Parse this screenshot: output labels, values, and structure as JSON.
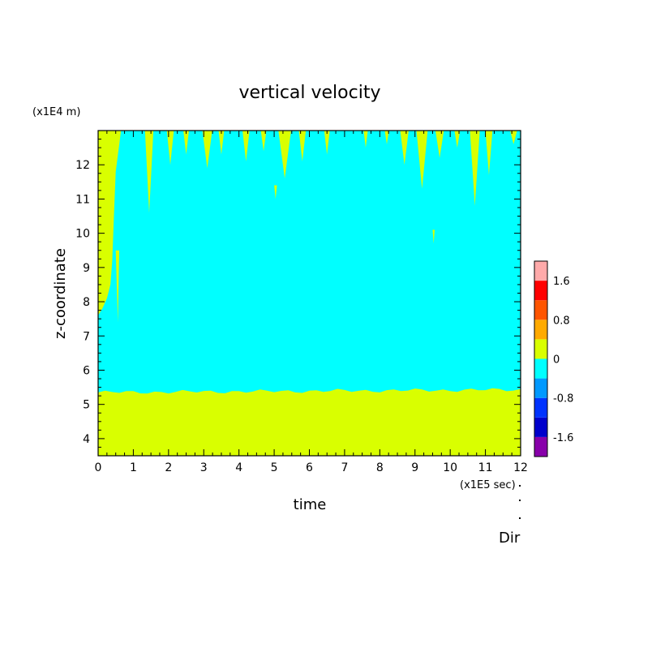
{
  "chart_data": {
    "type": "heatmap",
    "title": "vertical velocity",
    "xlabel": "time",
    "ylabel": "z-coordinate",
    "x_unit": "(x1E5 sec)",
    "y_unit": "(x1E4 m)",
    "xlim": [
      0,
      12
    ],
    "ylim": [
      3.5,
      13
    ],
    "x_ticks": [
      "0",
      "1",
      "2",
      "3",
      "4",
      "5",
      "6",
      "7",
      "8",
      "9",
      "10",
      "11",
      "12"
    ],
    "y_ticks": [
      "4",
      "5",
      "6",
      "7",
      "8",
      "9",
      "10",
      "11",
      "12"
    ],
    "background_level_color": "#00ffff",
    "regions": [
      {
        "name": "lower-positive-layer",
        "level": "0 to 0.4",
        "color": "#d9ff00",
        "x_range": [
          0,
          12
        ],
        "z_top": 5.4
      },
      {
        "name": "early-positive-plume",
        "level": "0 to 0.4",
        "color": "#d9ff00",
        "x_range": [
          0,
          0.7
        ],
        "z_range": [
          7.6,
          13
        ]
      },
      {
        "name": "upper-positive-streaks",
        "level": "0 to 0.4",
        "color": "#d9ff00",
        "x_range": [
          0.7,
          12
        ],
        "z_range": [
          11.0,
          13
        ]
      }
    ],
    "colorbar": {
      "levels": [
        -2.0,
        -1.6,
        -1.2,
        -0.8,
        -0.4,
        0,
        0.4,
        0.8,
        1.2,
        1.6,
        2.0
      ],
      "colors": [
        "#8800aa",
        "#0000cc",
        "#0033ff",
        "#0099ff",
        "#00ffff",
        "#d9ff00",
        "#ffaa00",
        "#ff5500",
        "#ff0000",
        "#ffaaaa"
      ],
      "tick_labels": [
        "-1.6",
        "-0.8",
        "0",
        "0.8",
        "1.6"
      ],
      "tick_values": [
        -1.6,
        -0.8,
        0,
        0.8,
        1.6
      ]
    },
    "footer_label": "Dir"
  }
}
